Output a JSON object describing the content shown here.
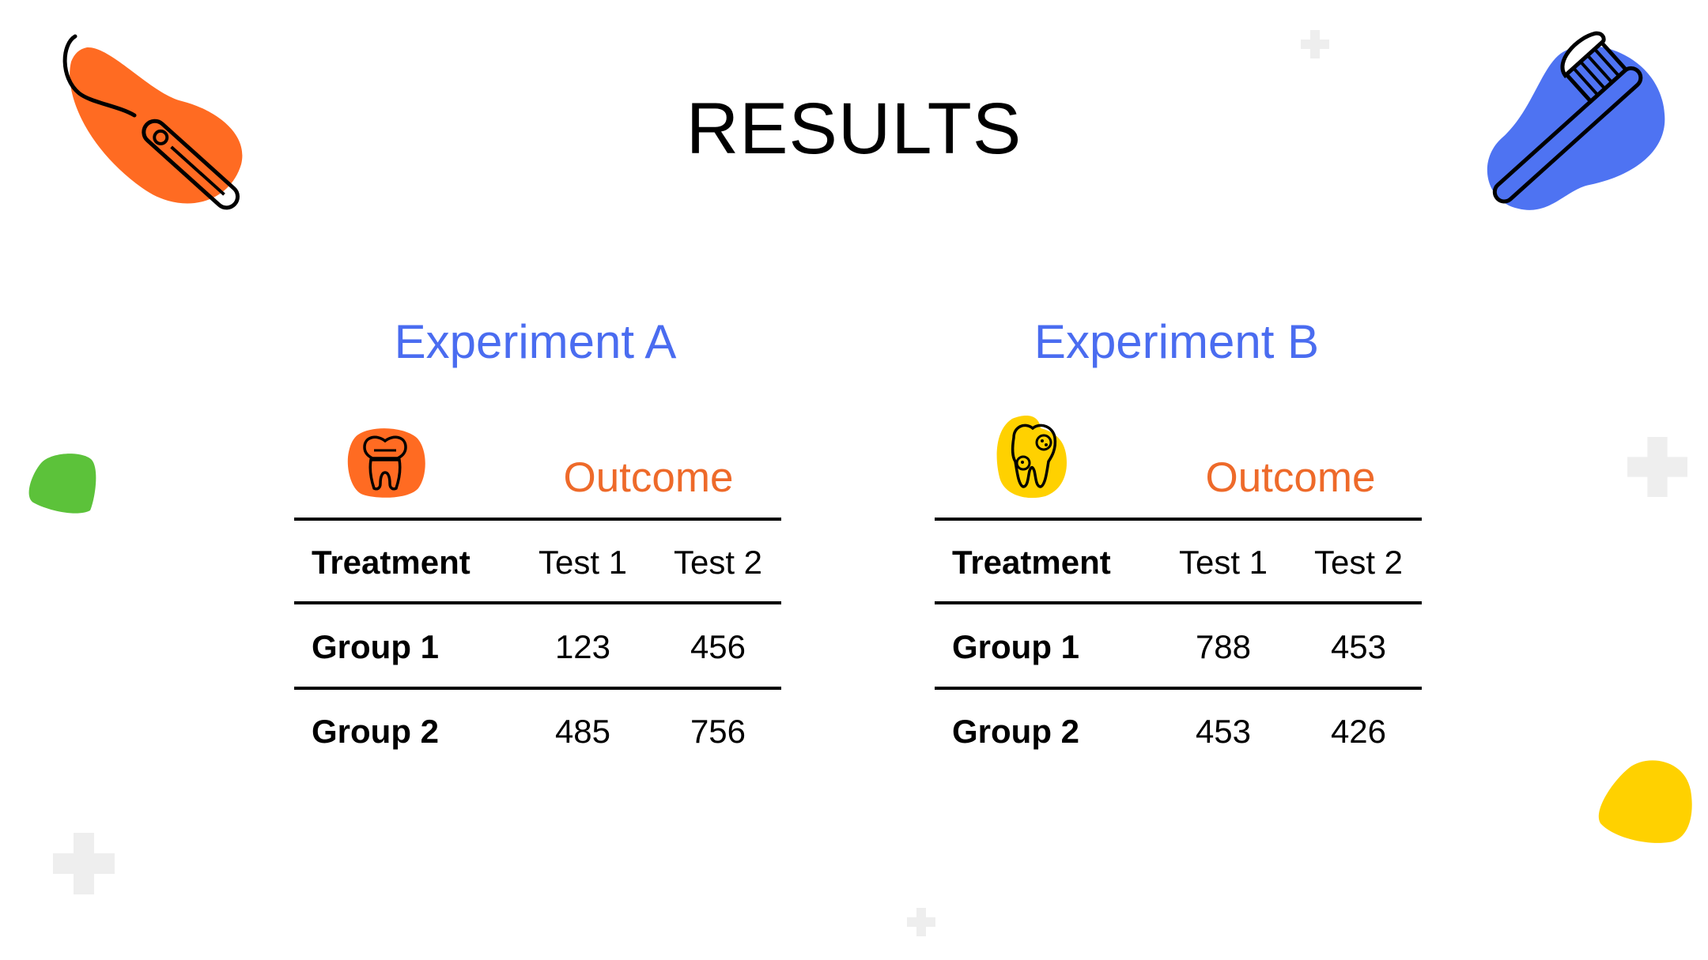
{
  "slide": {
    "title": "RESULTS"
  },
  "colors": {
    "accent_blue": "#4a6cf0",
    "accent_orange": "#ee6a2a",
    "blob_orange": "#ff6b22",
    "blob_blue": "#4e73f2",
    "blob_green": "#5cc23a",
    "blob_yellow": "#ffd100",
    "plus_grey": "#eeeeee"
  },
  "icons": [
    "dental-mirror-icon",
    "toothbrush-icon",
    "tooth-crown-icon",
    "decayed-tooth-icon",
    "plus-icon"
  ],
  "experiments": [
    {
      "title": "Experiment A",
      "outcome_label": "Outcome",
      "headers": [
        "Treatment",
        "Test 1",
        "Test 2"
      ],
      "rows": [
        [
          "Group 1",
          "123",
          "456"
        ],
        [
          "Group 2",
          "485",
          "756"
        ]
      ]
    },
    {
      "title": "Experiment B",
      "outcome_label": "Outcome",
      "headers": [
        "Treatment",
        "Test 1",
        "Test 2"
      ],
      "rows": [
        [
          "Group 1",
          "788",
          "453"
        ],
        [
          "Group 2",
          "453",
          "426"
        ]
      ]
    }
  ]
}
